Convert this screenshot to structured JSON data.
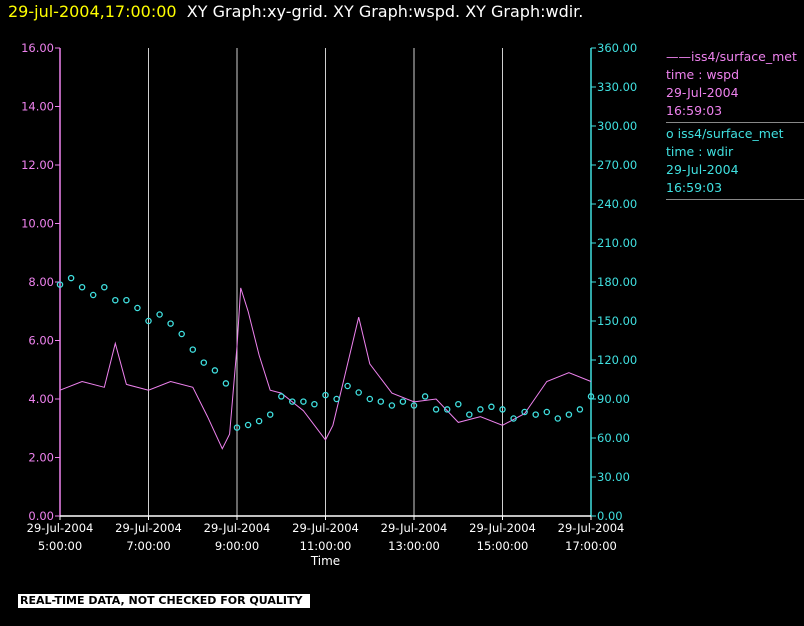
{
  "header": {
    "time": "29-jul-2004,17:00:00",
    "graphs": "XY Graph:xy-grid.  XY Graph:wspd.  XY Graph:wdir."
  },
  "legend": [
    {
      "marker": "——",
      "line1": "iss4/surface_met",
      "line2": "time : wspd",
      "line3": "29-Jul-2004",
      "line4": "16:59:03",
      "color": "#ee82ee"
    },
    {
      "marker": "o",
      "line1": "iss4/surface_met",
      "line2": "time : wdir",
      "line3": "29-Jul-2004",
      "line4": "16:59:03",
      "color": "#40e0e0"
    }
  ],
  "footer": {
    "warning": "REAL-TIME DATA, NOT CHECKED FOR QUALITY"
  },
  "chart_data": {
    "type": "line",
    "xlabel": "Time",
    "x_range": [
      "29-Jul-2004 5:00:00",
      "29-Jul-2004 17:00:00"
    ],
    "x_tick_labels": [
      {
        "date": "29-Jul-2004",
        "time": "5:00:00"
      },
      {
        "date": "29-Jul-2004",
        "time": "7:00:00"
      },
      {
        "date": "29-Jul-2004",
        "time": "9:00:00"
      },
      {
        "date": "29-Jul-2004",
        "time": "11:00:00"
      },
      {
        "date": "29-Jul-2004",
        "time": "13:00:00"
      },
      {
        "date": "29-Jul-2004",
        "time": "15:00:00"
      },
      {
        "date": "29-Jul-2004",
        "time": "17:00:00"
      }
    ],
    "x_grid": true,
    "y_left": {
      "range": [
        0,
        16
      ],
      "ticks": [
        "0.00",
        "2.00",
        "4.00",
        "6.00",
        "8.00",
        "10.00",
        "12.00",
        "14.00",
        "16.00"
      ],
      "color": "#ee82ee"
    },
    "y_right": {
      "range": [
        0,
        360
      ],
      "ticks": [
        "0.00",
        "30.00",
        "60.00",
        "90.00",
        "120.00",
        "150.00",
        "180.00",
        "210.00",
        "240.00",
        "270.00",
        "300.00",
        "330.00",
        "360.00"
      ],
      "color": "#40e0e0"
    },
    "series": [
      {
        "name": "iss4/surface_met time : wspd",
        "axis": "left",
        "style": "line",
        "x": [
          "05:00",
          "05:30",
          "06:00",
          "06:15",
          "06:30",
          "07:00",
          "07:30",
          "08:00",
          "08:20",
          "08:40",
          "08:50",
          "09:00",
          "09:05",
          "09:15",
          "09:30",
          "09:45",
          "10:00",
          "10:30",
          "11:00",
          "11:10",
          "11:30",
          "11:45",
          "12:00",
          "12:30",
          "13:00",
          "13:30",
          "14:00",
          "14:30",
          "15:00",
          "15:30",
          "16:00",
          "16:30",
          "17:00"
        ],
        "values": [
          4.3,
          4.6,
          4.4,
          5.9,
          4.5,
          4.3,
          4.6,
          4.4,
          3.4,
          2.3,
          2.8,
          5.8,
          7.8,
          7.0,
          5.5,
          4.3,
          4.2,
          3.6,
          2.6,
          3.1,
          5.2,
          6.8,
          5.2,
          4.2,
          3.9,
          4.0,
          3.2,
          3.4,
          3.1,
          3.5,
          4.6,
          4.9,
          4.6
        ]
      },
      {
        "name": "iss4/surface_met time : wdir",
        "axis": "right",
        "style": "scatter",
        "x": [
          "05:00",
          "05:15",
          "05:30",
          "05:45",
          "06:00",
          "06:15",
          "06:30",
          "06:45",
          "07:00",
          "07:15",
          "07:30",
          "07:45",
          "08:00",
          "08:15",
          "08:30",
          "08:45",
          "09:00",
          "09:15",
          "09:30",
          "09:45",
          "10:00",
          "10:15",
          "10:30",
          "10:45",
          "11:00",
          "11:15",
          "11:30",
          "11:45",
          "12:00",
          "12:15",
          "12:30",
          "12:45",
          "13:00",
          "13:15",
          "13:30",
          "13:45",
          "14:00",
          "14:15",
          "14:30",
          "14:45",
          "15:00",
          "15:15",
          "15:30",
          "15:45",
          "16:00",
          "16:15",
          "16:30",
          "16:45",
          "17:00"
        ],
        "values": [
          178,
          183,
          176,
          170,
          176,
          166,
          166,
          160,
          150,
          155,
          148,
          140,
          128,
          118,
          112,
          102,
          68,
          70,
          73,
          78,
          92,
          88,
          88,
          86,
          93,
          90,
          100,
          95,
          90,
          88,
          85,
          88,
          85,
          92,
          82,
          82,
          86,
          78,
          82,
          84,
          82,
          75,
          80,
          78,
          80,
          75,
          78,
          82,
          92
        ]
      }
    ]
  }
}
